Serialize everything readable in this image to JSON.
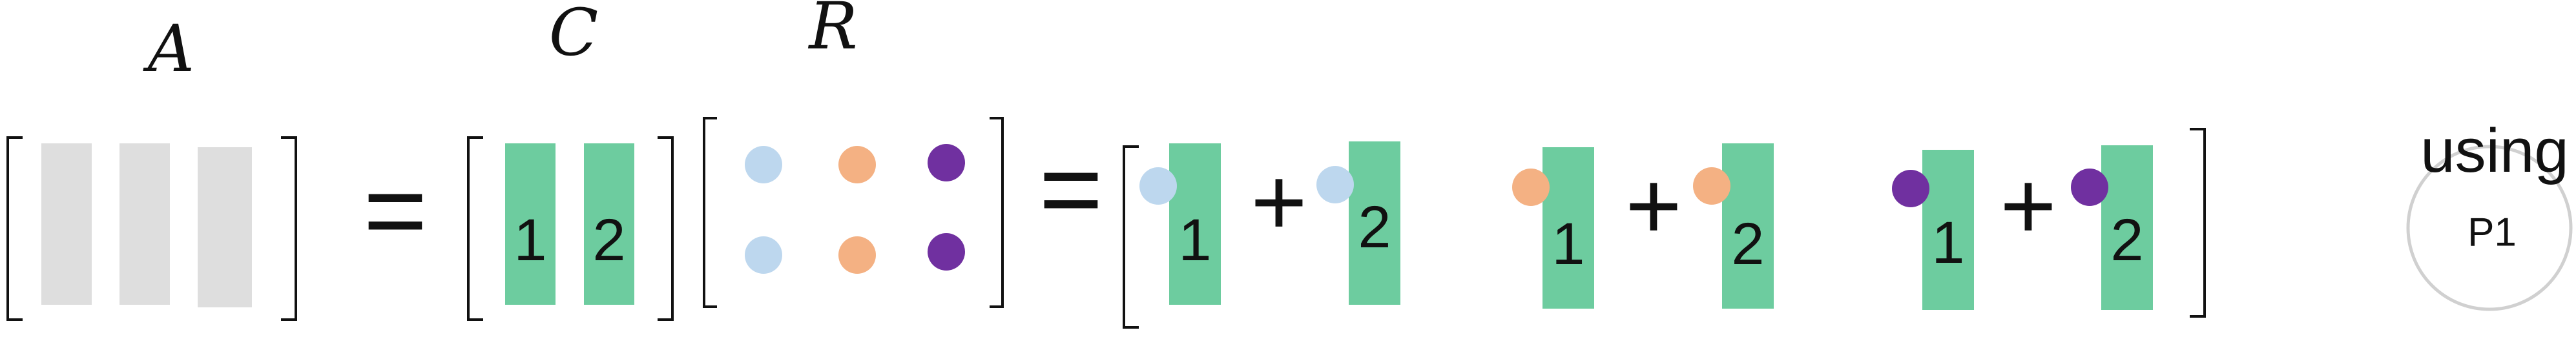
{
  "labels": {
    "a": "A",
    "c": "C",
    "r": "R"
  },
  "operators": {
    "equals": "=",
    "plus": "+"
  },
  "columns": {
    "one": "1",
    "two": "2"
  },
  "note": {
    "text": "using",
    "badge": "P1"
  },
  "colors": {
    "gray_column": "#dedede",
    "green_column": "#6dcc9f",
    "light_blue": "#bdd7ee",
    "orange": "#f4b183",
    "purple": "#7030a0"
  }
}
